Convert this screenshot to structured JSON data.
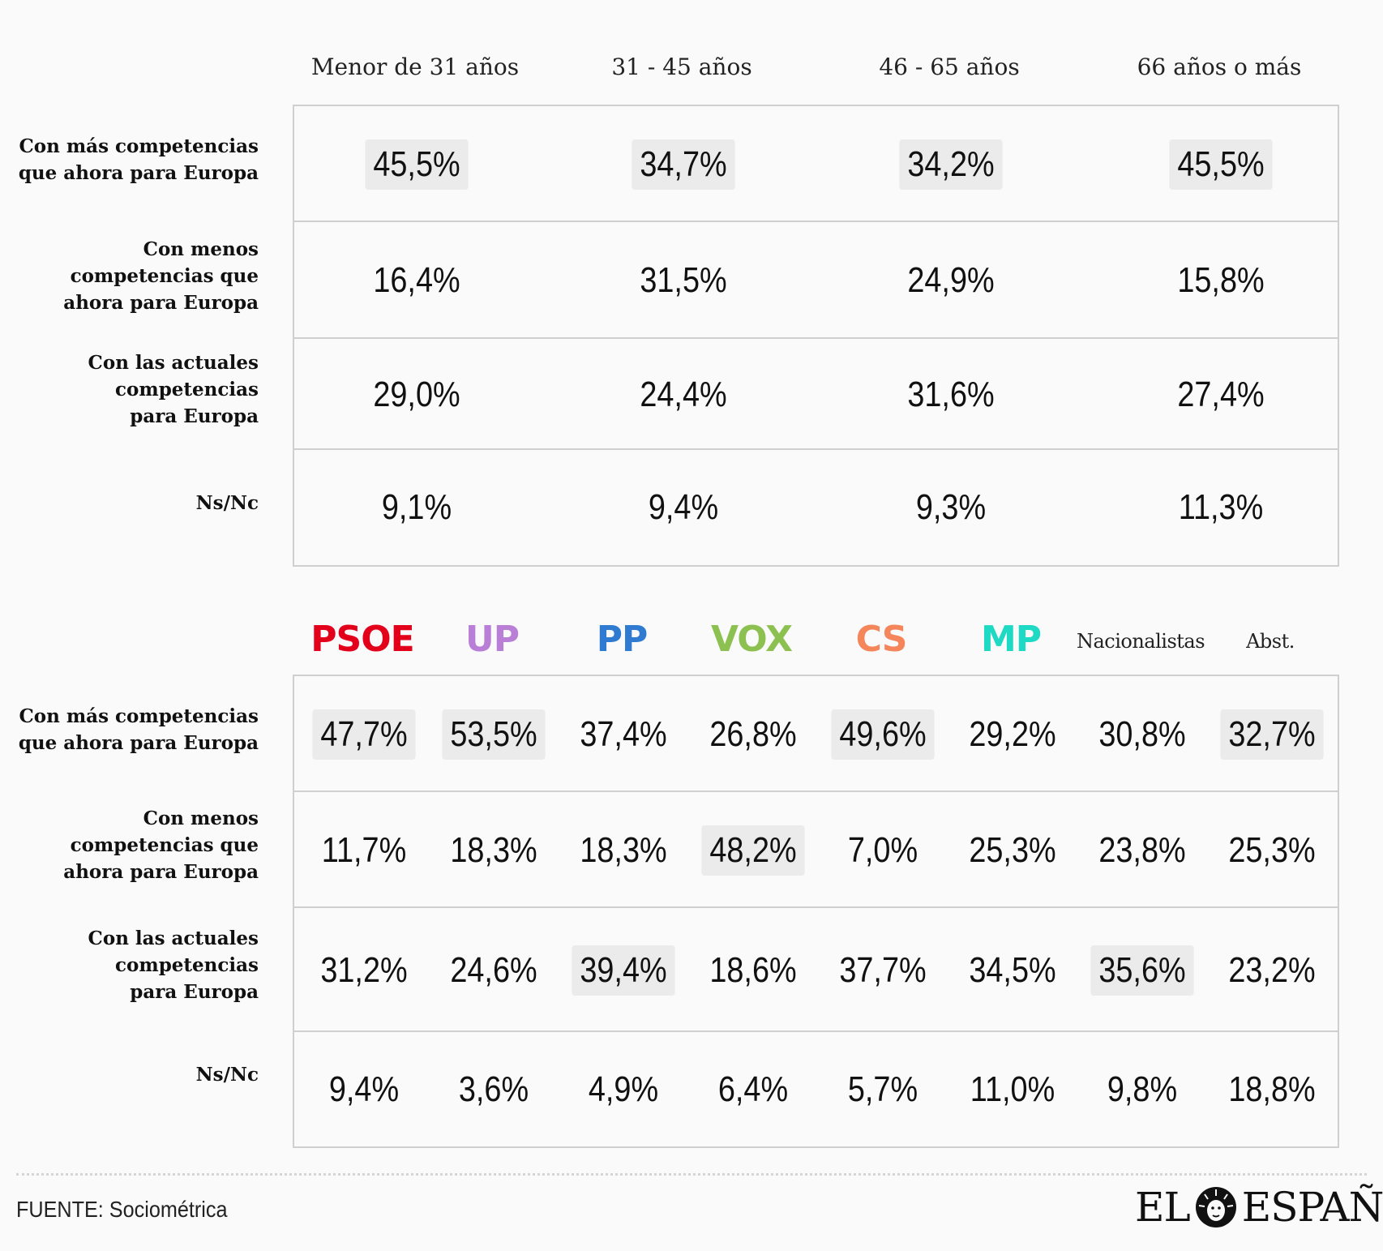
{
  "chart_data": [
    {
      "type": "table",
      "columns": [
        "Menor de 31 años",
        "31 - 45 años",
        "46 - 65 años",
        "66 años o más"
      ],
      "rows": [
        {
          "label": "Con más competencias\nque ahora para Europa",
          "values": [
            "45,5%",
            "34,7%",
            "34,2%",
            "45,5%"
          ],
          "highlight": [
            true,
            true,
            true,
            true
          ]
        },
        {
          "label": "Con menos\ncompetencias que\nahora para Europa",
          "values": [
            "16,4%",
            "31,5%",
            "24,9%",
            "15,8%"
          ],
          "highlight": [
            false,
            false,
            false,
            false
          ]
        },
        {
          "label": "Con las actuales\ncompetencias \npara Europa",
          "values": [
            "29,0%",
            "24,4%",
            "31,6%",
            "27,4%"
          ],
          "highlight": [
            false,
            false,
            false,
            false
          ]
        },
        {
          "label": "Ns/Nc",
          "values": [
            "9,1%",
            "9,4%",
            "9,3%",
            "11,3%"
          ],
          "highlight": [
            false,
            false,
            false,
            false
          ]
        }
      ]
    },
    {
      "type": "table",
      "columns": [
        {
          "name": "PSOE",
          "color": "#e3001b"
        },
        {
          "name": "UP",
          "color": "#b97fd6"
        },
        {
          "name": "PP",
          "color": "#2f7bd2"
        },
        {
          "name": "VOX",
          "color": "#8cc152"
        },
        {
          "name": "CS",
          "color": "#f5855a"
        },
        {
          "name": "MP",
          "color": "#1ed9c4"
        },
        {
          "name": "Nacionalistas",
          "color": "#222222"
        },
        {
          "name": "Abst.",
          "color": "#222222"
        }
      ],
      "rows": [
        {
          "label": "Con más competencias\nque ahora para Europa",
          "values": [
            "47,7%",
            "53,5%",
            "37,4%",
            "26,8%",
            "49,6%",
            "29,2%",
            "30,8%",
            "32,7%"
          ],
          "highlight": [
            true,
            true,
            false,
            false,
            true,
            false,
            false,
            true
          ]
        },
        {
          "label": "Con menos\ncompetencias que\nahora para Europa",
          "values": [
            "11,7%",
            "18,3%",
            "18,3%",
            "48,2%",
            "7,0%",
            "25,3%",
            "23,8%",
            "25,3%"
          ],
          "highlight": [
            false,
            false,
            false,
            true,
            false,
            false,
            false,
            false
          ]
        },
        {
          "label": "Con las actuales\ncompetencias\npara Europa",
          "values": [
            "31,2%",
            "24,6%",
            "39,4%",
            "18,6%",
            "37,7%",
            "34,5%",
            "35,6%",
            "23,2%"
          ],
          "highlight": [
            false,
            false,
            true,
            false,
            false,
            false,
            true,
            false
          ]
        },
        {
          "label": "Ns/Nc",
          "values": [
            "9,4%",
            "3,6%",
            "4,9%",
            "6,4%",
            "5,7%",
            "11,0%",
            "9,8%",
            "18,8%"
          ],
          "highlight": [
            false,
            false,
            false,
            false,
            false,
            false,
            false,
            false
          ]
        }
      ]
    }
  ],
  "footer": {
    "source": "FUENTE: Sociométrica",
    "logo_left": "EL",
    "logo_right": "ESPAÑOL"
  }
}
